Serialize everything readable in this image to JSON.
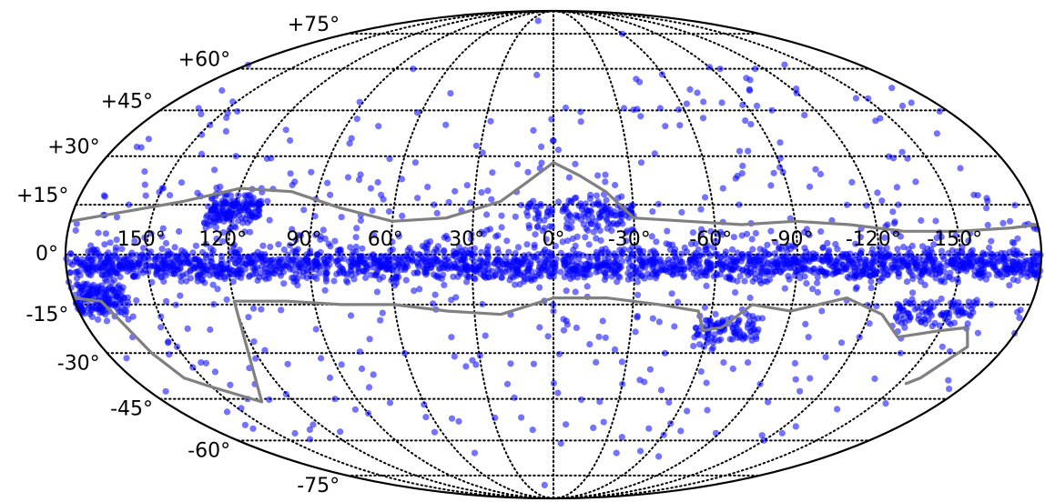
{
  "chart_data": {
    "type": "scatter",
    "projection": "mollweide",
    "coordinate_frame": "galactic",
    "title": "",
    "xlabel": "",
    "ylabel": "",
    "xlim": [
      -180,
      180
    ],
    "ylim": [
      -90,
      90
    ],
    "x_direction": "reversed",
    "grid": true,
    "legend": "none",
    "lat_tick_values": [
      75,
      60,
      45,
      30,
      15,
      0,
      -15,
      -30,
      -45,
      -60,
      -75
    ],
    "lat_tick_labels": [
      "+75°",
      "+60°",
      "+45°",
      "+30°",
      "+15°",
      "0°",
      "-15°",
      "-30°",
      "-45°",
      "-60°",
      "-75°"
    ],
    "lon_tick_values": [
      150,
      120,
      90,
      60,
      30,
      0,
      -30,
      -60,
      -90,
      -120,
      -150
    ],
    "lon_tick_labels": [
      "150°",
      "120°",
      "90°",
      "60°",
      "30°",
      "0°",
      "-30°",
      "-60°",
      "-90°",
      "-120°",
      "-150°"
    ],
    "point_color": "#0000ff",
    "point_opacity": 0.55,
    "boundary_color": "#808080",
    "grid_color": "#000000",
    "dense_regions": [
      {
        "l_range": [
          -180,
          180
        ],
        "b_range": [
          -10,
          4
        ],
        "weight": 0.55
      },
      {
        "l_range": [
          160,
          180
        ],
        "b_range": [
          -22,
          -5
        ],
        "weight": 0.05
      },
      {
        "l_range": [
          110,
          130
        ],
        "b_range": [
          5,
          22
        ],
        "weight": 0.05
      },
      {
        "l_range": [
          -30,
          10
        ],
        "b_range": [
          5,
          20
        ],
        "weight": 0.04
      },
      {
        "l_range": [
          -80,
          -55
        ],
        "b_range": [
          -30,
          -15
        ],
        "weight": 0.03
      },
      {
        "l_range": [
          -160,
          -130
        ],
        "b_range": [
          -25,
          -10
        ],
        "weight": 0.03
      }
    ],
    "points": [
      {
        "l": 152,
        "b": 48
      },
      {
        "l": 140,
        "b": 38
      },
      {
        "l": 110,
        "b": 35
      },
      {
        "l": 128,
        "b": 30
      },
      {
        "l": 95,
        "b": 25
      },
      {
        "l": 100,
        "b": 22
      },
      {
        "l": 85,
        "b": 18
      },
      {
        "l": 70,
        "b": 20
      },
      {
        "l": 55,
        "b": 28
      },
      {
        "l": 45,
        "b": 15
      },
      {
        "l": 25,
        "b": 12
      },
      {
        "l": 5,
        "b": 33
      },
      {
        "l": 0,
        "b": 35
      },
      {
        "l": -2,
        "b": 32
      },
      {
        "l": 10,
        "b": 25
      },
      {
        "l": -20,
        "b": 22
      },
      {
        "l": -35,
        "b": 28
      },
      {
        "l": -45,
        "b": 55
      },
      {
        "l": -55,
        "b": 40
      },
      {
        "l": -65,
        "b": 20
      },
      {
        "l": -70,
        "b": 15
      },
      {
        "l": -90,
        "b": 25
      },
      {
        "l": -100,
        "b": 45
      },
      {
        "l": -115,
        "b": 60
      },
      {
        "l": -130,
        "b": 15
      },
      {
        "l": -140,
        "b": 22
      },
      {
        "l": -160,
        "b": 18
      },
      {
        "l": -170,
        "b": 10
      },
      {
        "l": -95,
        "b": 60
      },
      {
        "l": -60,
        "b": 75
      },
      {
        "l": 20,
        "b": 82
      },
      {
        "l": 80,
        "b": 60
      },
      {
        "l": 150,
        "b": 20
      },
      {
        "l": 160,
        "b": 15
      },
      {
        "l": 170,
        "b": -10
      },
      {
        "l": 165,
        "b": -25
      },
      {
        "l": 150,
        "b": -28
      },
      {
        "l": 145,
        "b": -33
      },
      {
        "l": 140,
        "b": -45
      },
      {
        "l": 130,
        "b": -40
      },
      {
        "l": 100,
        "b": -45
      },
      {
        "l": 90,
        "b": -50
      },
      {
        "l": 80,
        "b": -35
      },
      {
        "l": 60,
        "b": -30
      },
      {
        "l": 40,
        "b": -25
      },
      {
        "l": 20,
        "b": -40
      },
      {
        "l": 0,
        "b": -17
      },
      {
        "l": -5,
        "b": -20
      },
      {
        "l": -30,
        "b": -40
      },
      {
        "l": -45,
        "b": -30
      },
      {
        "l": -60,
        "b": -28
      },
      {
        "l": -70,
        "b": -33
      },
      {
        "l": -75,
        "b": -35
      },
      {
        "l": -80,
        "b": -33
      },
      {
        "l": -90,
        "b": -40
      },
      {
        "l": -100,
        "b": -25
      },
      {
        "l": -120,
        "b": -25
      },
      {
        "l": -140,
        "b": -30
      },
      {
        "l": -155,
        "b": -28
      },
      {
        "l": -165,
        "b": -15
      },
      {
        "l": 50,
        "b": -65
      },
      {
        "l": -40,
        "b": -65
      },
      {
        "l": 10,
        "b": -80
      },
      {
        "l": -120,
        "b": -60
      }
    ],
    "series_boundary_north": [
      {
        "l": 180,
        "b": 10
      },
      {
        "l": 160,
        "b": 13
      },
      {
        "l": 140,
        "b": 16
      },
      {
        "l": 120,
        "b": 20
      },
      {
        "l": 100,
        "b": 19
      },
      {
        "l": 80,
        "b": 14
      },
      {
        "l": 60,
        "b": 10
      },
      {
        "l": 40,
        "b": 11
      },
      {
        "l": 20,
        "b": 16
      },
      {
        "l": 10,
        "b": 22
      },
      {
        "l": 0,
        "b": 28
      },
      {
        "l": -10,
        "b": 24
      },
      {
        "l": -20,
        "b": 19
      },
      {
        "l": -30,
        "b": 11
      },
      {
        "l": -50,
        "b": 10
      },
      {
        "l": -70,
        "b": 9
      },
      {
        "l": -90,
        "b": 10
      },
      {
        "l": -110,
        "b": 9
      },
      {
        "l": -130,
        "b": 7
      },
      {
        "l": -150,
        "b": 7
      },
      {
        "l": -170,
        "b": 8
      },
      {
        "l": -180,
        "b": 9
      }
    ],
    "series_boundary_south": [
      {
        "l": 180,
        "b": -13
      },
      {
        "l": 170,
        "b": -14
      },
      {
        "l": 166,
        "b": -20
      },
      {
        "l": 162,
        "b": -30
      },
      {
        "l": 158,
        "b": -38
      },
      {
        "l": 150,
        "b": -41
      },
      {
        "l": 135,
        "b": -46
      },
      {
        "l": 120,
        "b": -14
      },
      {
        "l": 100,
        "b": -14
      },
      {
        "l": 80,
        "b": -15
      },
      {
        "l": 60,
        "b": -15
      },
      {
        "l": 40,
        "b": -17
      },
      {
        "l": 20,
        "b": -18
      },
      {
        "l": 0,
        "b": -13
      },
      {
        "l": -20,
        "b": -13
      },
      {
        "l": -40,
        "b": -15
      },
      {
        "l": -55,
        "b": -17
      },
      {
        "l": -58,
        "b": -23
      },
      {
        "l": -65,
        "b": -22
      },
      {
        "l": -75,
        "b": -15
      },
      {
        "l": -90,
        "b": -17
      },
      {
        "l": -110,
        "b": -13
      },
      {
        "l": -125,
        "b": -18
      },
      {
        "l": -135,
        "b": -25
      },
      {
        "l": -150,
        "b": -23
      },
      {
        "l": -160,
        "b": -22
      },
      {
        "l": -165,
        "b": -28
      },
      {
        "l": -157,
        "b": -38
      },
      {
        "l": -153,
        "b": -40
      }
    ]
  }
}
